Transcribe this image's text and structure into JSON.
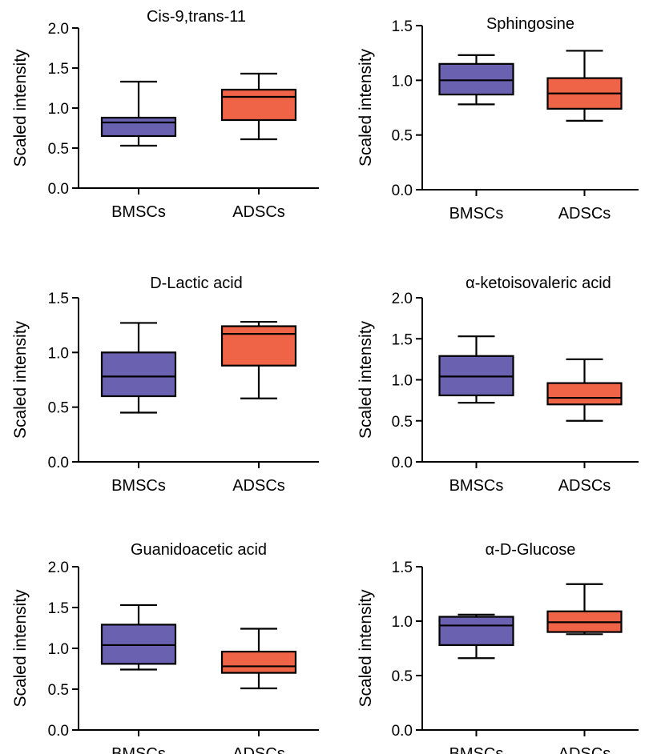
{
  "colors": {
    "BMSCs": "#6a62b0",
    "ADSCs": "#ef6347"
  },
  "chart_data": [
    {
      "type": "box",
      "title": "Cis-9,trans-11",
      "ylabel": "Scaled intensity",
      "ylim": [
        0,
        2.0
      ],
      "yticks": [
        "0.0",
        "0.5",
        "1.0",
        "1.5",
        "2.0"
      ],
      "categories": [
        "BMSCs",
        "ADSCs"
      ],
      "boxes": [
        {
          "group": "BMSCs",
          "min": 0.53,
          "q1": 0.65,
          "median": 0.82,
          "q3": 0.88,
          "max": 1.33
        },
        {
          "group": "ADSCs",
          "min": 0.61,
          "q1": 0.85,
          "median": 1.14,
          "q3": 1.23,
          "max": 1.43
        }
      ]
    },
    {
      "type": "box",
      "title": "Sphingosine",
      "ylabel": "Scaled intensity",
      "ylim": [
        0,
        1.5
      ],
      "yticks": [
        "0.0",
        "0.5",
        "1.0",
        "1.5"
      ],
      "categories": [
        "BMSCs",
        "ADSCs"
      ],
      "boxes": [
        {
          "group": "BMSCs",
          "min": 0.78,
          "q1": 0.87,
          "median": 1.0,
          "q3": 1.15,
          "max": 1.23
        },
        {
          "group": "ADSCs",
          "min": 0.63,
          "q1": 0.74,
          "median": 0.88,
          "q3": 1.02,
          "max": 1.27
        }
      ]
    },
    {
      "type": "box",
      "title": "D-Lactic acid",
      "ylabel": "Scaled intensity",
      "ylim": [
        0,
        1.5
      ],
      "yticks": [
        "0.0",
        "0.5",
        "1.0",
        "1.5"
      ],
      "categories": [
        "BMSCs",
        "ADSCs"
      ],
      "boxes": [
        {
          "group": "BMSCs",
          "min": 0.45,
          "q1": 0.6,
          "median": 0.78,
          "q3": 1.0,
          "max": 1.27
        },
        {
          "group": "ADSCs",
          "min": 0.58,
          "q1": 0.88,
          "median": 1.17,
          "q3": 1.24,
          "max": 1.28
        }
      ]
    },
    {
      "type": "box",
      "title": "α-ketoisovaleric acid",
      "ylabel": "Scaled intensity",
      "ylim": [
        0,
        2.0
      ],
      "yticks": [
        "0.0",
        "0.5",
        "1.0",
        "1.5",
        "2.0"
      ],
      "categories": [
        "BMSCs",
        "ADSCs"
      ],
      "boxes": [
        {
          "group": "BMSCs",
          "min": 0.72,
          "q1": 0.81,
          "median": 1.04,
          "q3": 1.29,
          "max": 1.53
        },
        {
          "group": "ADSCs",
          "min": 0.5,
          "q1": 0.7,
          "median": 0.78,
          "q3": 0.96,
          "max": 1.25
        }
      ]
    },
    {
      "type": "box",
      "title": "Guanidoacetic acid",
      "ylabel": "Scaled intensity",
      "ylim": [
        0,
        2.0
      ],
      "yticks": [
        "0.0",
        "0.5",
        "1.0",
        "1.5",
        "2.0"
      ],
      "categories": [
        "BMSCs",
        "ADSCs"
      ],
      "boxes": [
        {
          "group": "BMSCs",
          "min": 0.74,
          "q1": 0.81,
          "median": 1.04,
          "q3": 1.29,
          "max": 1.53
        },
        {
          "group": "ADSCs",
          "min": 0.51,
          "q1": 0.7,
          "median": 0.78,
          "q3": 0.96,
          "max": 1.24
        }
      ]
    },
    {
      "type": "box",
      "title": "α-D-Glucose",
      "ylabel": "Scaled intensity",
      "ylim": [
        0,
        1.5
      ],
      "yticks": [
        "0.0",
        "0.5",
        "1.0",
        "1.5"
      ],
      "categories": [
        "BMSCs",
        "ADSCs"
      ],
      "boxes": [
        {
          "group": "BMSCs",
          "min": 0.66,
          "q1": 0.78,
          "median": 0.96,
          "q3": 1.04,
          "max": 1.06
        },
        {
          "group": "ADSCs",
          "min": 0.88,
          "q1": 0.9,
          "median": 0.99,
          "q3": 1.09,
          "max": 1.34
        }
      ]
    }
  ]
}
